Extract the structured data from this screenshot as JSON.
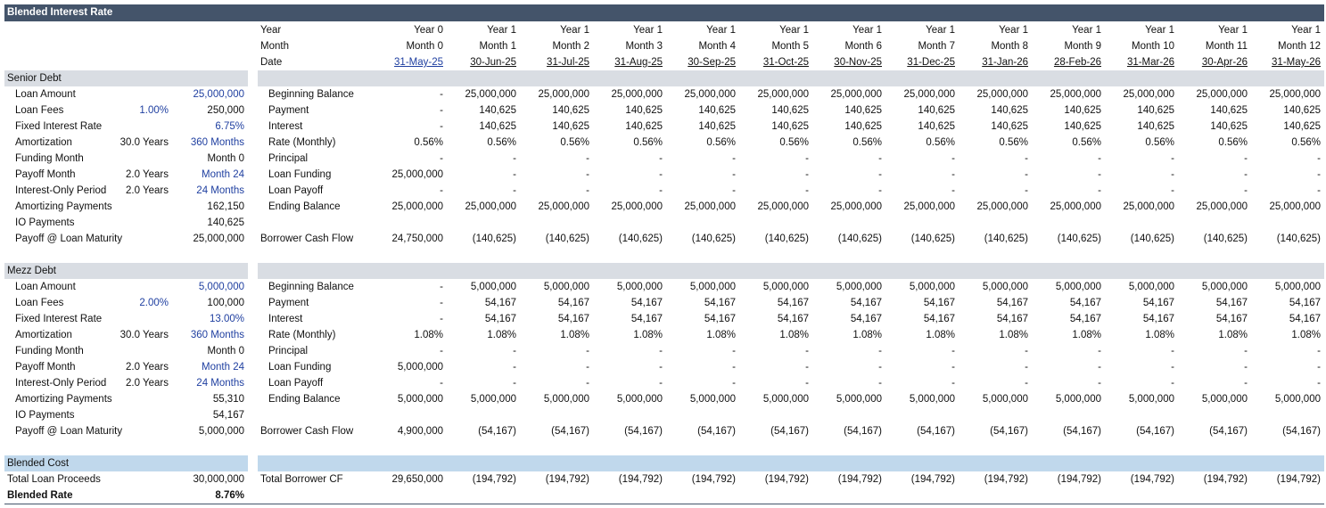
{
  "title": "Blended Interest Rate",
  "columns": {
    "row_labels": [
      "Year",
      "Month",
      "Date"
    ],
    "year": [
      "Year 0",
      "Year 1",
      "Year 1",
      "Year 1",
      "Year 1",
      "Year 1",
      "Year 1",
      "Year 1",
      "Year 1",
      "Year 1",
      "Year 1",
      "Year 1",
      "Year 1"
    ],
    "month": [
      "Month 0",
      "Month 1",
      "Month 2",
      "Month 3",
      "Month 4",
      "Month 5",
      "Month 6",
      "Month 7",
      "Month 8",
      "Month 9",
      "Month 10",
      "Month 11",
      "Month 12"
    ],
    "date": [
      "31-May-25",
      "30-Jun-25",
      "31-Jul-25",
      "31-Aug-25",
      "30-Sep-25",
      "31-Oct-25",
      "30-Nov-25",
      "31-Dec-25",
      "31-Jan-26",
      "28-Feb-26",
      "31-Mar-26",
      "30-Apr-26",
      "31-May-26"
    ]
  },
  "senior": {
    "header": "Senior Debt",
    "inputs": [
      {
        "label": "Loan Amount",
        "mid": "",
        "val": "25,000,000",
        "val_blue": true,
        "mid_blue": false
      },
      {
        "label": "Loan Fees",
        "mid": "1.00%",
        "val": "250,000",
        "val_blue": false,
        "mid_blue": true
      },
      {
        "label": "Fixed Interest Rate",
        "mid": "",
        "val": "6.75%",
        "val_blue": true,
        "mid_blue": false
      },
      {
        "label": "Amortization",
        "mid": "30.0 Years",
        "val": "360 Months",
        "val_blue": true,
        "mid_blue": false
      },
      {
        "label": "Funding Month",
        "mid": "",
        "val": "Month 0",
        "val_blue": false,
        "mid_blue": false
      },
      {
        "label": "Payoff Month",
        "mid": "2.0 Years",
        "val": "Month 24",
        "val_blue": true,
        "mid_blue": false
      },
      {
        "label": "Interest-Only Period",
        "mid": "2.0 Years",
        "val": "24 Months",
        "val_blue": true,
        "mid_blue": false
      },
      {
        "label": "Amortizing Payments",
        "mid": "",
        "val": "162,150",
        "val_blue": false,
        "mid_blue": false
      },
      {
        "label": "IO Payments",
        "mid": "",
        "val": "140,625",
        "val_blue": false,
        "mid_blue": false
      },
      {
        "label": "Payoff @ Loan Maturity",
        "mid": "",
        "val": "25,000,000",
        "val_blue": false,
        "mid_blue": false
      }
    ],
    "schedule": [
      {
        "label": "Beginning Balance",
        "values": [
          "-",
          "25,000,000",
          "25,000,000",
          "25,000,000",
          "25,000,000",
          "25,000,000",
          "25,000,000",
          "25,000,000",
          "25,000,000",
          "25,000,000",
          "25,000,000",
          "25,000,000",
          "25,000,000"
        ]
      },
      {
        "label": "Payment",
        "values": [
          "-",
          "140,625",
          "140,625",
          "140,625",
          "140,625",
          "140,625",
          "140,625",
          "140,625",
          "140,625",
          "140,625",
          "140,625",
          "140,625",
          "140,625"
        ]
      },
      {
        "label": "Interest",
        "values": [
          "-",
          "140,625",
          "140,625",
          "140,625",
          "140,625",
          "140,625",
          "140,625",
          "140,625",
          "140,625",
          "140,625",
          "140,625",
          "140,625",
          "140,625"
        ]
      },
      {
        "label": "Rate (Monthly)",
        "values": [
          "0.56%",
          "0.56%",
          "0.56%",
          "0.56%",
          "0.56%",
          "0.56%",
          "0.56%",
          "0.56%",
          "0.56%",
          "0.56%",
          "0.56%",
          "0.56%",
          "0.56%"
        ]
      },
      {
        "label": "Principal",
        "values": [
          "-",
          "-",
          "-",
          "-",
          "-",
          "-",
          "-",
          "-",
          "-",
          "-",
          "-",
          "-",
          "-"
        ]
      },
      {
        "label": "Loan Funding",
        "values": [
          "25,000,000",
          "-",
          "-",
          "-",
          "-",
          "-",
          "-",
          "-",
          "-",
          "-",
          "-",
          "-",
          "-"
        ]
      },
      {
        "label": "Loan Payoff",
        "values": [
          "-",
          "-",
          "-",
          "-",
          "-",
          "-",
          "-",
          "-",
          "-",
          "-",
          "-",
          "-",
          "-"
        ]
      },
      {
        "label": "Ending Balance",
        "values": [
          "25,000,000",
          "25,000,000",
          "25,000,000",
          "25,000,000",
          "25,000,000",
          "25,000,000",
          "25,000,000",
          "25,000,000",
          "25,000,000",
          "25,000,000",
          "25,000,000",
          "25,000,000",
          "25,000,000"
        ]
      }
    ],
    "cashflow": {
      "label": "Borrower Cash Flow",
      "values": [
        "24,750,000",
        "(140,625)",
        "(140,625)",
        "(140,625)",
        "(140,625)",
        "(140,625)",
        "(140,625)",
        "(140,625)",
        "(140,625)",
        "(140,625)",
        "(140,625)",
        "(140,625)",
        "(140,625)"
      ]
    }
  },
  "mezz": {
    "header": "Mezz Debt",
    "inputs": [
      {
        "label": "Loan Amount",
        "mid": "",
        "val": "5,000,000",
        "val_blue": true,
        "mid_blue": false
      },
      {
        "label": "Loan Fees",
        "mid": "2.00%",
        "val": "100,000",
        "val_blue": false,
        "mid_blue": true
      },
      {
        "label": "Fixed Interest Rate",
        "mid": "",
        "val": "13.00%",
        "val_blue": true,
        "mid_blue": false
      },
      {
        "label": "Amortization",
        "mid": "30.0 Years",
        "val": "360 Months",
        "val_blue": true,
        "mid_blue": false
      },
      {
        "label": "Funding Month",
        "mid": "",
        "val": "Month 0",
        "val_blue": false,
        "mid_blue": false
      },
      {
        "label": "Payoff Month",
        "mid": "2.0 Years",
        "val": "Month 24",
        "val_blue": true,
        "mid_blue": false
      },
      {
        "label": "Interest-Only Period",
        "mid": "2.0 Years",
        "val": "24 Months",
        "val_blue": true,
        "mid_blue": false
      },
      {
        "label": "Amortizing Payments",
        "mid": "",
        "val": "55,310",
        "val_blue": false,
        "mid_blue": false
      },
      {
        "label": "IO Payments",
        "mid": "",
        "val": "54,167",
        "val_blue": false,
        "mid_blue": false
      },
      {
        "label": "Payoff @ Loan Maturity",
        "mid": "",
        "val": "5,000,000",
        "val_blue": false,
        "mid_blue": false
      }
    ],
    "schedule": [
      {
        "label": "Beginning Balance",
        "values": [
          "-",
          "5,000,000",
          "5,000,000",
          "5,000,000",
          "5,000,000",
          "5,000,000",
          "5,000,000",
          "5,000,000",
          "5,000,000",
          "5,000,000",
          "5,000,000",
          "5,000,000",
          "5,000,000"
        ]
      },
      {
        "label": "Payment",
        "values": [
          "-",
          "54,167",
          "54,167",
          "54,167",
          "54,167",
          "54,167",
          "54,167",
          "54,167",
          "54,167",
          "54,167",
          "54,167",
          "54,167",
          "54,167"
        ]
      },
      {
        "label": "Interest",
        "values": [
          "-",
          "54,167",
          "54,167",
          "54,167",
          "54,167",
          "54,167",
          "54,167",
          "54,167",
          "54,167",
          "54,167",
          "54,167",
          "54,167",
          "54,167"
        ]
      },
      {
        "label": "Rate (Monthly)",
        "values": [
          "1.08%",
          "1.08%",
          "1.08%",
          "1.08%",
          "1.08%",
          "1.08%",
          "1.08%",
          "1.08%",
          "1.08%",
          "1.08%",
          "1.08%",
          "1.08%",
          "1.08%"
        ]
      },
      {
        "label": "Principal",
        "values": [
          "-",
          "-",
          "-",
          "-",
          "-",
          "-",
          "-",
          "-",
          "-",
          "-",
          "-",
          "-",
          "-"
        ]
      },
      {
        "label": "Loan Funding",
        "values": [
          "5,000,000",
          "-",
          "-",
          "-",
          "-",
          "-",
          "-",
          "-",
          "-",
          "-",
          "-",
          "-",
          "-"
        ]
      },
      {
        "label": "Loan Payoff",
        "values": [
          "-",
          "-",
          "-",
          "-",
          "-",
          "-",
          "-",
          "-",
          "-",
          "-",
          "-",
          "-",
          "-"
        ]
      },
      {
        "label": "Ending Balance",
        "values": [
          "5,000,000",
          "5,000,000",
          "5,000,000",
          "5,000,000",
          "5,000,000",
          "5,000,000",
          "5,000,000",
          "5,000,000",
          "5,000,000",
          "5,000,000",
          "5,000,000",
          "5,000,000",
          "5,000,000"
        ]
      }
    ],
    "cashflow": {
      "label": "Borrower Cash Flow",
      "values": [
        "4,900,000",
        "(54,167)",
        "(54,167)",
        "(54,167)",
        "(54,167)",
        "(54,167)",
        "(54,167)",
        "(54,167)",
        "(54,167)",
        "(54,167)",
        "(54,167)",
        "(54,167)",
        "(54,167)"
      ]
    }
  },
  "blended": {
    "header": "Blended Cost",
    "total_label": "Total Loan Proceeds",
    "total_value": "30,000,000",
    "rate_label": "Blended Rate",
    "rate_value": "8.76%",
    "cf_label": "Total Borrower CF",
    "cf_values": [
      "29,650,000",
      "(194,792)",
      "(194,792)",
      "(194,792)",
      "(194,792)",
      "(194,792)",
      "(194,792)",
      "(194,792)",
      "(194,792)",
      "(194,792)",
      "(194,792)",
      "(194,792)",
      "(194,792)"
    ]
  },
  "colors": {
    "title_bar": "#44546a",
    "section_gray": "#d9dde3",
    "section_blue": "#c0d8ec",
    "input_blue": "#1f3fa0"
  }
}
